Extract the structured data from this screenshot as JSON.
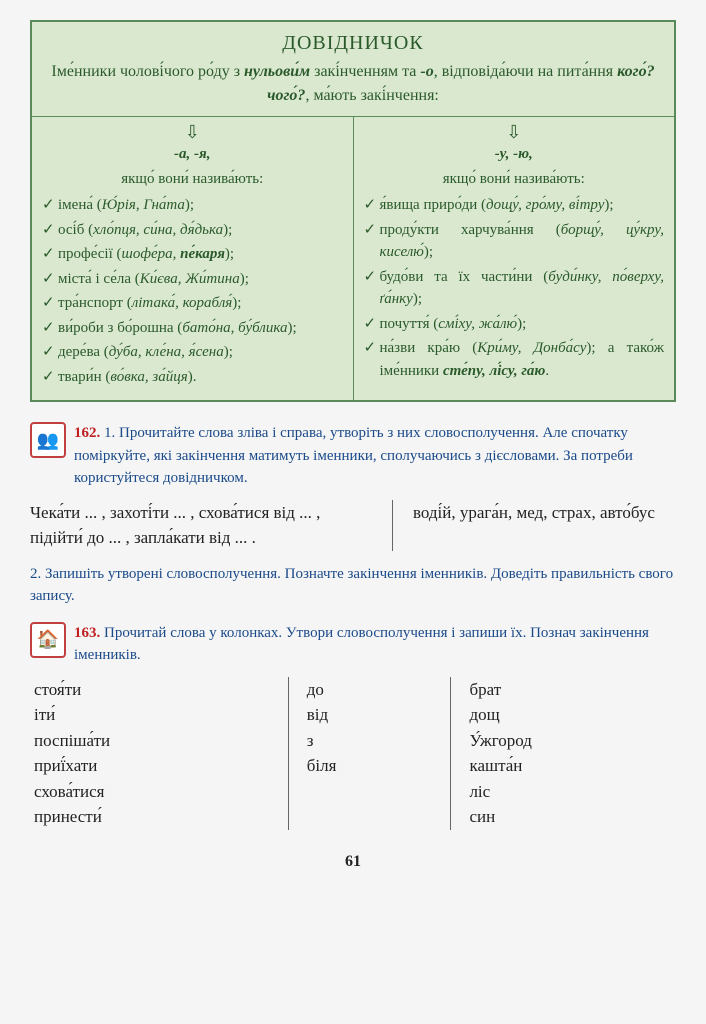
{
  "reference": {
    "title": "ДОВІДНИЧОК",
    "subtitle_parts": [
      "Іме́нники чолові́чого ро́ду з ",
      "нульови́м",
      " закі́нченням та ",
      "-о",
      ", відповіда́ючи на пита́ння ",
      "кого́? чого́?",
      ", ма́ють закі́нчення:"
    ],
    "columns": [
      {
        "arrow": "⇩",
        "endings": "-а, -я,",
        "condition": "якщо́ вони́ назива́ють:",
        "items": [
          {
            "label": "імена́ (",
            "ex": "Ю́рія, Гна́та",
            "tail": ");"
          },
          {
            "label": "осі́б (",
            "ex": "хло́пця, си́на, дя́дька",
            "tail": ");"
          },
          {
            "label": "профе́сії (",
            "ex": "шофе́ра, ",
            "bold": "пе́каря",
            "tail": ");"
          },
          {
            "label": "міста́ і се́ла (",
            "ex": "Ки́єва, Жи́тина",
            "tail": ");"
          },
          {
            "label": "тра́нспорт (",
            "ex": "літака́, корабля́",
            "tail": ");"
          },
          {
            "label": "ви́роби з бо́рошна (",
            "ex": "бато́на, бу́блика",
            "tail": ");"
          },
          {
            "label": "дере́ва (",
            "ex": "ду́ба, кле́на, я́сена",
            "tail": ");"
          },
          {
            "label": "твари́н (",
            "ex": "во́вка, за́йця",
            "tail": ")."
          }
        ]
      },
      {
        "arrow": "⇩",
        "endings": "-у, -ю,",
        "condition": "якщо́ вони́ назива́ють:",
        "items": [
          {
            "label": "я́вища приро́ди (",
            "ex": "дощу́, гро́му, ві́тру",
            "tail": ");"
          },
          {
            "label": "проду́кти харчува́ння (",
            "ex": "борщу́, цу́кру, киселю́",
            "tail": ");"
          },
          {
            "label": "будо́ви та їх части́ни (",
            "ex": "буди́нку, по́верху, ґа́нку",
            "tail": ");"
          },
          {
            "label": "почуття́ (",
            "ex": "смі́ху, жа́лю́",
            "tail": ");"
          },
          {
            "label": "на́зви кра́ю (",
            "ex": "Кри́му, Донба́су",
            "tail": "); а тако́ж іме́нники ",
            "bold": "сте́пу, лі́су, га́ю",
            "tail2": "."
          }
        ]
      }
    ]
  },
  "ex162": {
    "num": "162.",
    "part1": "1. Прочитайте слова зліва і справа, утворіть з них слово­сполучення. Але спочатку поміркуйте, які закінчення матимуть іменники, сполучаючись з дієсловами. За потреби користуй­теся довідничком.",
    "left": "Чека́ти ... , захоті́ти ... , схова́тися від ... , підійти́ до ... , запла́кати від ... .",
    "right": "воді́й, урага́н, мед, страх, авто́бус",
    "part2": "2. Запишіть утворені словосполучення. Позначте закінчення іменни­ків. Доведіть правильність свого запису."
  },
  "ex163": {
    "num": "163.",
    "text": "Прочитай слова у колонках. Утвори словосполучення і запиши їх. Познач закінчення іменників.",
    "col1": [
      "стоя́ти",
      "іти́",
      "поспіша́ти",
      "приї́хати",
      "схова́тися",
      "принести́"
    ],
    "col2": [
      "до",
      "від",
      "з",
      "біля"
    ],
    "col3": [
      "брат",
      "дощ",
      "У́жгород",
      "кашта́н",
      "ліс",
      "син"
    ]
  },
  "page_number": "61"
}
